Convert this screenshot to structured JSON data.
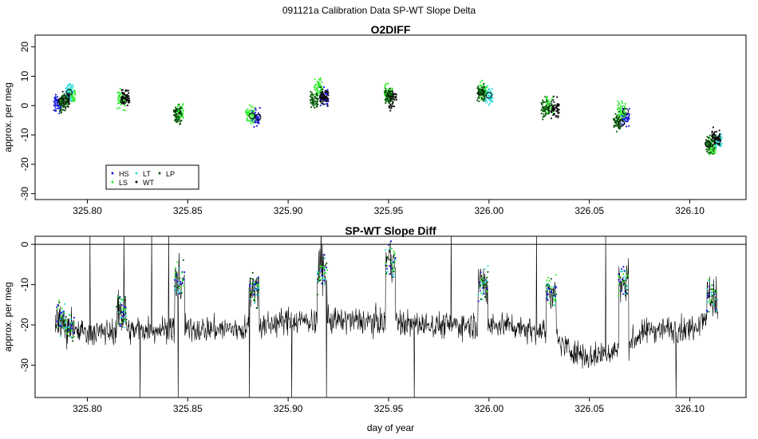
{
  "figure": {
    "title": "091121a   Calibration Data SP-WT Slope Delta"
  },
  "colors": {
    "HS": "#1a1ad6",
    "LS": "#33ee33",
    "LT": "#33dddd",
    "WT": "#111111",
    "LP": "#0a5a0a",
    "trace": "#000000"
  },
  "chart_data": [
    {
      "type": "scatter",
      "title": "O2DIFF",
      "xlabel": "",
      "ylabel": "approx. per meg",
      "xlim": [
        325.774,
        326.128
      ],
      "ylim": [
        -32,
        24
      ],
      "xticks": [
        "325.80",
        "325.85",
        "325.90",
        "325.95",
        "326.00",
        "326.05",
        "326.10"
      ],
      "yticks": [
        "20",
        "10",
        "0",
        "-10",
        "-20",
        "-30"
      ],
      "grid": false,
      "legend": {
        "position": "bottom-left",
        "entries": [
          "HS",
          "LT",
          "LP",
          "LS",
          "WT"
        ]
      },
      "series": [
        {
          "name": "HS",
          "x": [
            325.785,
            325.884,
            325.918,
            326.068
          ],
          "y": [
            0.5,
            -4,
            3,
            -4
          ]
        },
        {
          "name": "LS",
          "x": [
            325.792,
            325.817,
            325.846,
            325.881,
            325.915,
            325.95,
            325.997,
            326.03,
            326.066,
            326.111
          ],
          "y": [
            3.5,
            2,
            -2,
            -3,
            6,
            4,
            5,
            0,
            -2,
            -14
          ]
        },
        {
          "name": "LT",
          "x": [
            325.791,
            326.0,
            326.114
          ],
          "y": [
            4.5,
            3.5,
            -12
          ]
        },
        {
          "name": "WT",
          "x": [
            325.789,
            325.819,
            325.918,
            325.952,
            326.033,
            326.113
          ],
          "y": [
            2,
            3,
            3,
            2,
            -1,
            -11
          ]
        },
        {
          "name": "LP",
          "x": [
            325.788,
            325.845,
            325.913,
            325.95,
            325.996,
            326.028,
            326.064,
            326.11
          ],
          "y": [
            1,
            -3,
            2,
            3,
            4,
            -1,
            -6,
            -13
          ]
        }
      ],
      "means": [
        {
          "x": 325.791,
          "y": 4.5
        },
        {
          "x": 325.787,
          "y": 1.5
        },
        {
          "x": 325.818,
          "y": 1.5
        },
        {
          "x": 325.845,
          "y": -2
        },
        {
          "x": 325.882,
          "y": -3.5
        },
        {
          "x": 325.885,
          "y": -4
        },
        {
          "x": 325.917,
          "y": 3
        },
        {
          "x": 325.951,
          "y": 4
        },
        {
          "x": 325.996,
          "y": 4.5
        },
        {
          "x": 326.0,
          "y": 3.5
        },
        {
          "x": 326.031,
          "y": -1
        },
        {
          "x": 326.066,
          "y": -6
        },
        {
          "x": 326.068,
          "y": -2
        },
        {
          "x": 326.109,
          "y": -13
        },
        {
          "x": 326.114,
          "y": -12
        }
      ]
    },
    {
      "type": "line",
      "title": "SP-WT Slope Diff",
      "xlabel": "day of year",
      "ylabel": "approx. per meg",
      "xlim": [
        325.774,
        326.128
      ],
      "ylim": [
        -38,
        2
      ],
      "xticks": [
        "325.80",
        "325.85",
        "325.90",
        "325.95",
        "326.00",
        "326.05",
        "326.10"
      ],
      "yticks": [
        "0",
        "-10",
        "-20",
        "-30"
      ],
      "grid": false,
      "hline": 0,
      "baseline": [
        {
          "x": 325.784,
          "y": -19
        },
        {
          "x": 325.8,
          "y": -22
        },
        {
          "x": 325.83,
          "y": -21
        },
        {
          "x": 325.86,
          "y": -21
        },
        {
          "x": 325.88,
          "y": -21
        },
        {
          "x": 325.9,
          "y": -19
        },
        {
          "x": 325.94,
          "y": -19
        },
        {
          "x": 325.97,
          "y": -20
        },
        {
          "x": 325.99,
          "y": -20
        },
        {
          "x": 326.01,
          "y": -20
        },
        {
          "x": 326.03,
          "y": -22
        },
        {
          "x": 326.04,
          "y": -26
        },
        {
          "x": 326.05,
          "y": -28
        },
        {
          "x": 326.065,
          "y": -26
        },
        {
          "x": 326.08,
          "y": -21
        },
        {
          "x": 326.1,
          "y": -21
        },
        {
          "x": 326.114,
          "y": -15
        }
      ],
      "calibrations": [
        {
          "x": 325.787,
          "y": -18
        },
        {
          "x": 325.791,
          "y": -21
        },
        {
          "x": 325.817,
          "y": -17
        },
        {
          "x": 325.846,
          "y": -9
        },
        {
          "x": 325.883,
          "y": -11
        },
        {
          "x": 325.917,
          "y": -7
        },
        {
          "x": 325.951,
          "y": -4
        },
        {
          "x": 325.997,
          "y": -10
        },
        {
          "x": 326.031,
          "y": -12
        },
        {
          "x": 326.067,
          "y": -9
        },
        {
          "x": 326.111,
          "y": -13
        }
      ]
    }
  ]
}
